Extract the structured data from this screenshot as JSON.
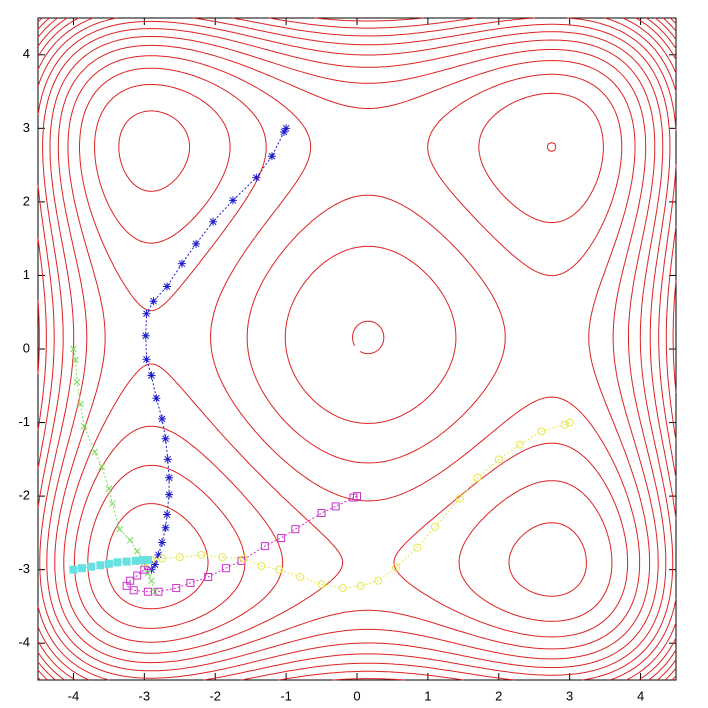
{
  "chart_data": {
    "type": "contour",
    "xlim": [
      -4.5,
      4.5
    ],
    "ylim": [
      -4.5,
      4.5
    ],
    "xticks": [
      -4,
      -3,
      -2,
      -1,
      0,
      1,
      2,
      3,
      4
    ],
    "yticks": [
      -4,
      -3,
      -2,
      -1,
      0,
      1,
      2,
      3,
      4
    ],
    "contour_color": "#dd2222",
    "contour_levels": [
      -140,
      -120,
      -100,
      -80,
      -60,
      -40,
      -20,
      0,
      20,
      40,
      60,
      80,
      100,
      120,
      140,
      160,
      180,
      200
    ],
    "series": [
      {
        "color": "#1a1acc",
        "marker": "asterisk",
        "x": [
          -1.0,
          -1.03,
          -1.2,
          -1.42,
          -1.75,
          -2.03,
          -2.27,
          -2.47,
          -2.68,
          -2.87,
          -2.97,
          -2.98,
          -2.97,
          -2.9,
          -2.83,
          -2.75,
          -2.7,
          -2.67,
          -2.65,
          -2.65,
          -2.68,
          -2.7,
          -2.75,
          -2.8,
          -2.85,
          -2.9
        ],
        "y": [
          3.0,
          2.95,
          2.62,
          2.33,
          2.02,
          1.73,
          1.43,
          1.16,
          0.85,
          0.65,
          0.48,
          0.18,
          -0.14,
          -0.36,
          -0.67,
          -0.95,
          -1.22,
          -1.5,
          -1.75,
          -1.98,
          -2.25,
          -2.43,
          -2.63,
          -2.8,
          -2.93,
          -3.0
        ]
      },
      {
        "color": "#77dd55",
        "marker": "cross",
        "x": [
          -4.0,
          -3.97,
          -3.95,
          -3.9,
          -3.85,
          -3.7,
          -3.6,
          -3.5,
          -3.45,
          -3.35,
          -3.2,
          -3.1,
          -3.0,
          -2.95,
          -2.9,
          -2.85
        ],
        "y": [
          0.0,
          -0.15,
          -0.45,
          -0.75,
          -1.05,
          -1.4,
          -1.6,
          -1.9,
          -2.1,
          -2.45,
          -2.6,
          -2.75,
          -2.9,
          -3.05,
          -3.15,
          -3.3
        ]
      },
      {
        "color": "#cc33cc",
        "marker": "square",
        "x": [
          0.0,
          -0.05,
          -0.3,
          -0.5,
          -0.87,
          -1.07,
          -1.3,
          -1.63,
          -1.85,
          -2.1,
          -2.35,
          -2.55,
          -2.8,
          -2.95,
          -3.15,
          -3.25,
          -3.2,
          -3.1,
          -3.0,
          -2.95
        ],
        "y": [
          -2.0,
          -2.02,
          -2.14,
          -2.23,
          -2.45,
          -2.57,
          -2.68,
          -2.88,
          -2.98,
          -3.1,
          -3.18,
          -3.25,
          -3.3,
          -3.3,
          -3.28,
          -3.22,
          -3.15,
          -3.08,
          -3.0,
          -2.95
        ]
      },
      {
        "color": "#e8e84a",
        "marker": "circle",
        "x": [
          3.0,
          2.93,
          2.6,
          2.3,
          2.0,
          1.7,
          1.45,
          1.1,
          0.85,
          0.55,
          0.3,
          0.05,
          -0.2,
          -0.5,
          -0.8,
          -1.1,
          -1.35,
          -1.6,
          -1.9,
          -2.2,
          -2.5,
          -2.75,
          -2.9,
          -3.0
        ],
        "y": [
          -1.0,
          -1.03,
          -1.12,
          -1.3,
          -1.5,
          -1.75,
          -2.03,
          -2.42,
          -2.7,
          -2.97,
          -3.15,
          -3.22,
          -3.25,
          -3.2,
          -3.1,
          -3.0,
          -2.95,
          -2.85,
          -2.83,
          -2.8,
          -2.83,
          -2.85,
          -2.87,
          -2.9
        ]
      },
      {
        "color": "#66e0e0",
        "marker": "filled-square",
        "x": [
          -4.0,
          -3.88,
          -3.75,
          -3.62,
          -3.5,
          -3.38,
          -3.25,
          -3.12,
          -3.02,
          -2.95
        ],
        "y": [
          -3.0,
          -2.98,
          -2.96,
          -2.94,
          -2.92,
          -2.9,
          -2.89,
          -2.88,
          -2.87,
          -2.87
        ]
      }
    ]
  }
}
